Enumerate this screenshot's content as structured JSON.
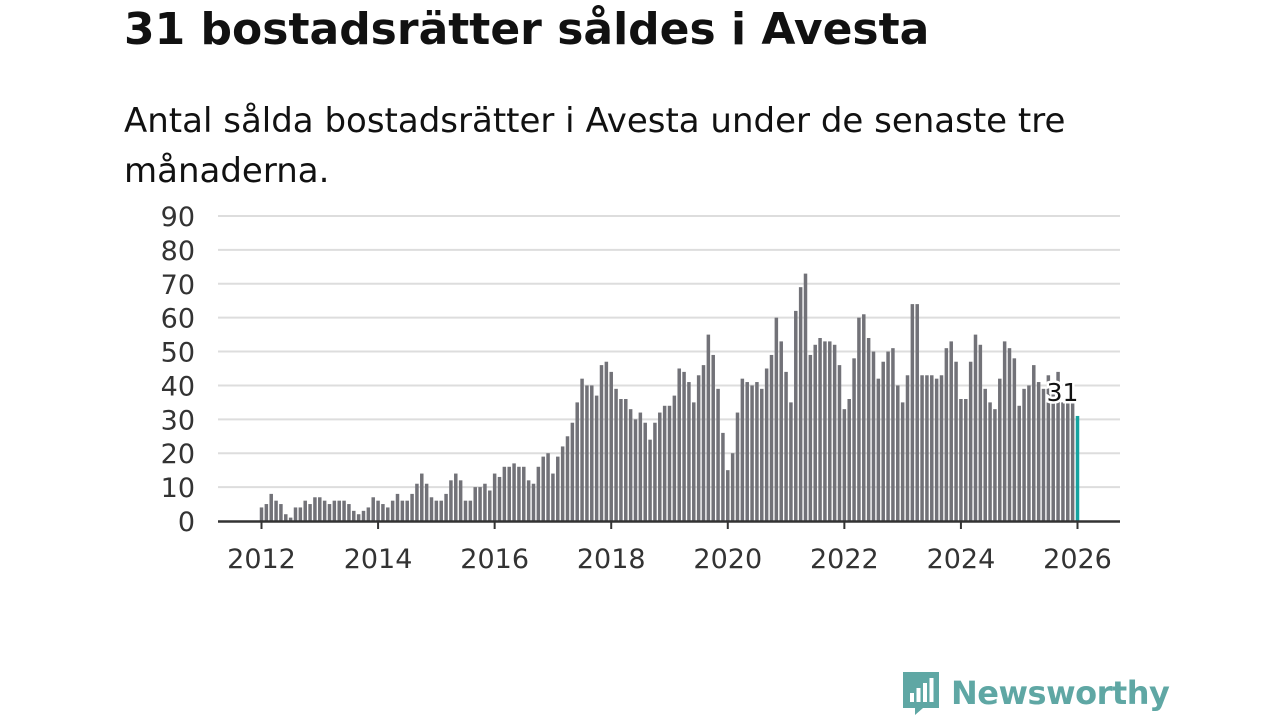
{
  "header": {
    "title": "31 bostadsrätter såldes i Avesta",
    "subtitle": "Antal sålda bostadsrätter i Avesta under de senaste tre månaderna."
  },
  "brand": {
    "name": "Newsworthy",
    "color": "#5fa7a4"
  },
  "colors": {
    "bar": "#727278",
    "highlight": "#15a3a0",
    "grid": "#dddddd",
    "axis": "#333333"
  },
  "chart_data": {
    "type": "bar",
    "title": "31 bostadsrätter såldes i Avesta",
    "xlabel": "",
    "ylabel": "",
    "ylim": [
      0,
      90
    ],
    "yticks": [
      0,
      10,
      20,
      30,
      40,
      50,
      60,
      70,
      80,
      90
    ],
    "xticks": [
      "2012",
      "2014",
      "2016",
      "2018",
      "2020",
      "2022",
      "2024",
      "2026"
    ],
    "x_start": "2012-01",
    "x_end": "2026-01",
    "annotation": {
      "label": "31",
      "index": 168
    },
    "values": [
      4,
      5,
      8,
      6,
      5,
      2,
      1,
      4,
      4,
      6,
      5,
      7,
      7,
      6,
      5,
      6,
      6,
      6,
      5,
      3,
      2,
      3,
      4,
      7,
      6,
      5,
      4,
      6,
      8,
      6,
      6,
      8,
      11,
      14,
      11,
      7,
      6,
      6,
      8,
      12,
      14,
      12,
      6,
      6,
      10,
      10,
      11,
      9,
      14,
      13,
      16,
      16,
      17,
      16,
      16,
      12,
      11,
      16,
      19,
      20,
      14,
      19,
      22,
      25,
      29,
      35,
      42,
      40,
      40,
      37,
      46,
      47,
      44,
      39,
      36,
      36,
      33,
      30,
      32,
      29,
      24,
      29,
      32,
      34,
      34,
      37,
      45,
      44,
      41,
      35,
      43,
      46,
      55,
      49,
      39,
      26,
      15,
      20,
      32,
      42,
      41,
      40,
      41,
      39,
      45,
      49,
      60,
      53,
      44,
      35,
      62,
      69,
      73,
      49,
      52,
      54,
      53,
      53,
      52,
      46,
      33,
      36,
      48,
      60,
      61,
      54,
      50,
      42,
      47,
      50,
      51,
      40,
      35,
      43,
      64,
      64,
      43,
      43,
      43,
      42,
      43,
      51,
      53,
      47,
      36,
      36,
      47,
      55,
      52,
      39,
      35,
      33,
      42,
      53,
      51,
      48,
      34,
      39,
      40,
      46,
      41,
      39,
      43,
      41,
      44,
      35,
      35,
      35,
      31
    ]
  }
}
